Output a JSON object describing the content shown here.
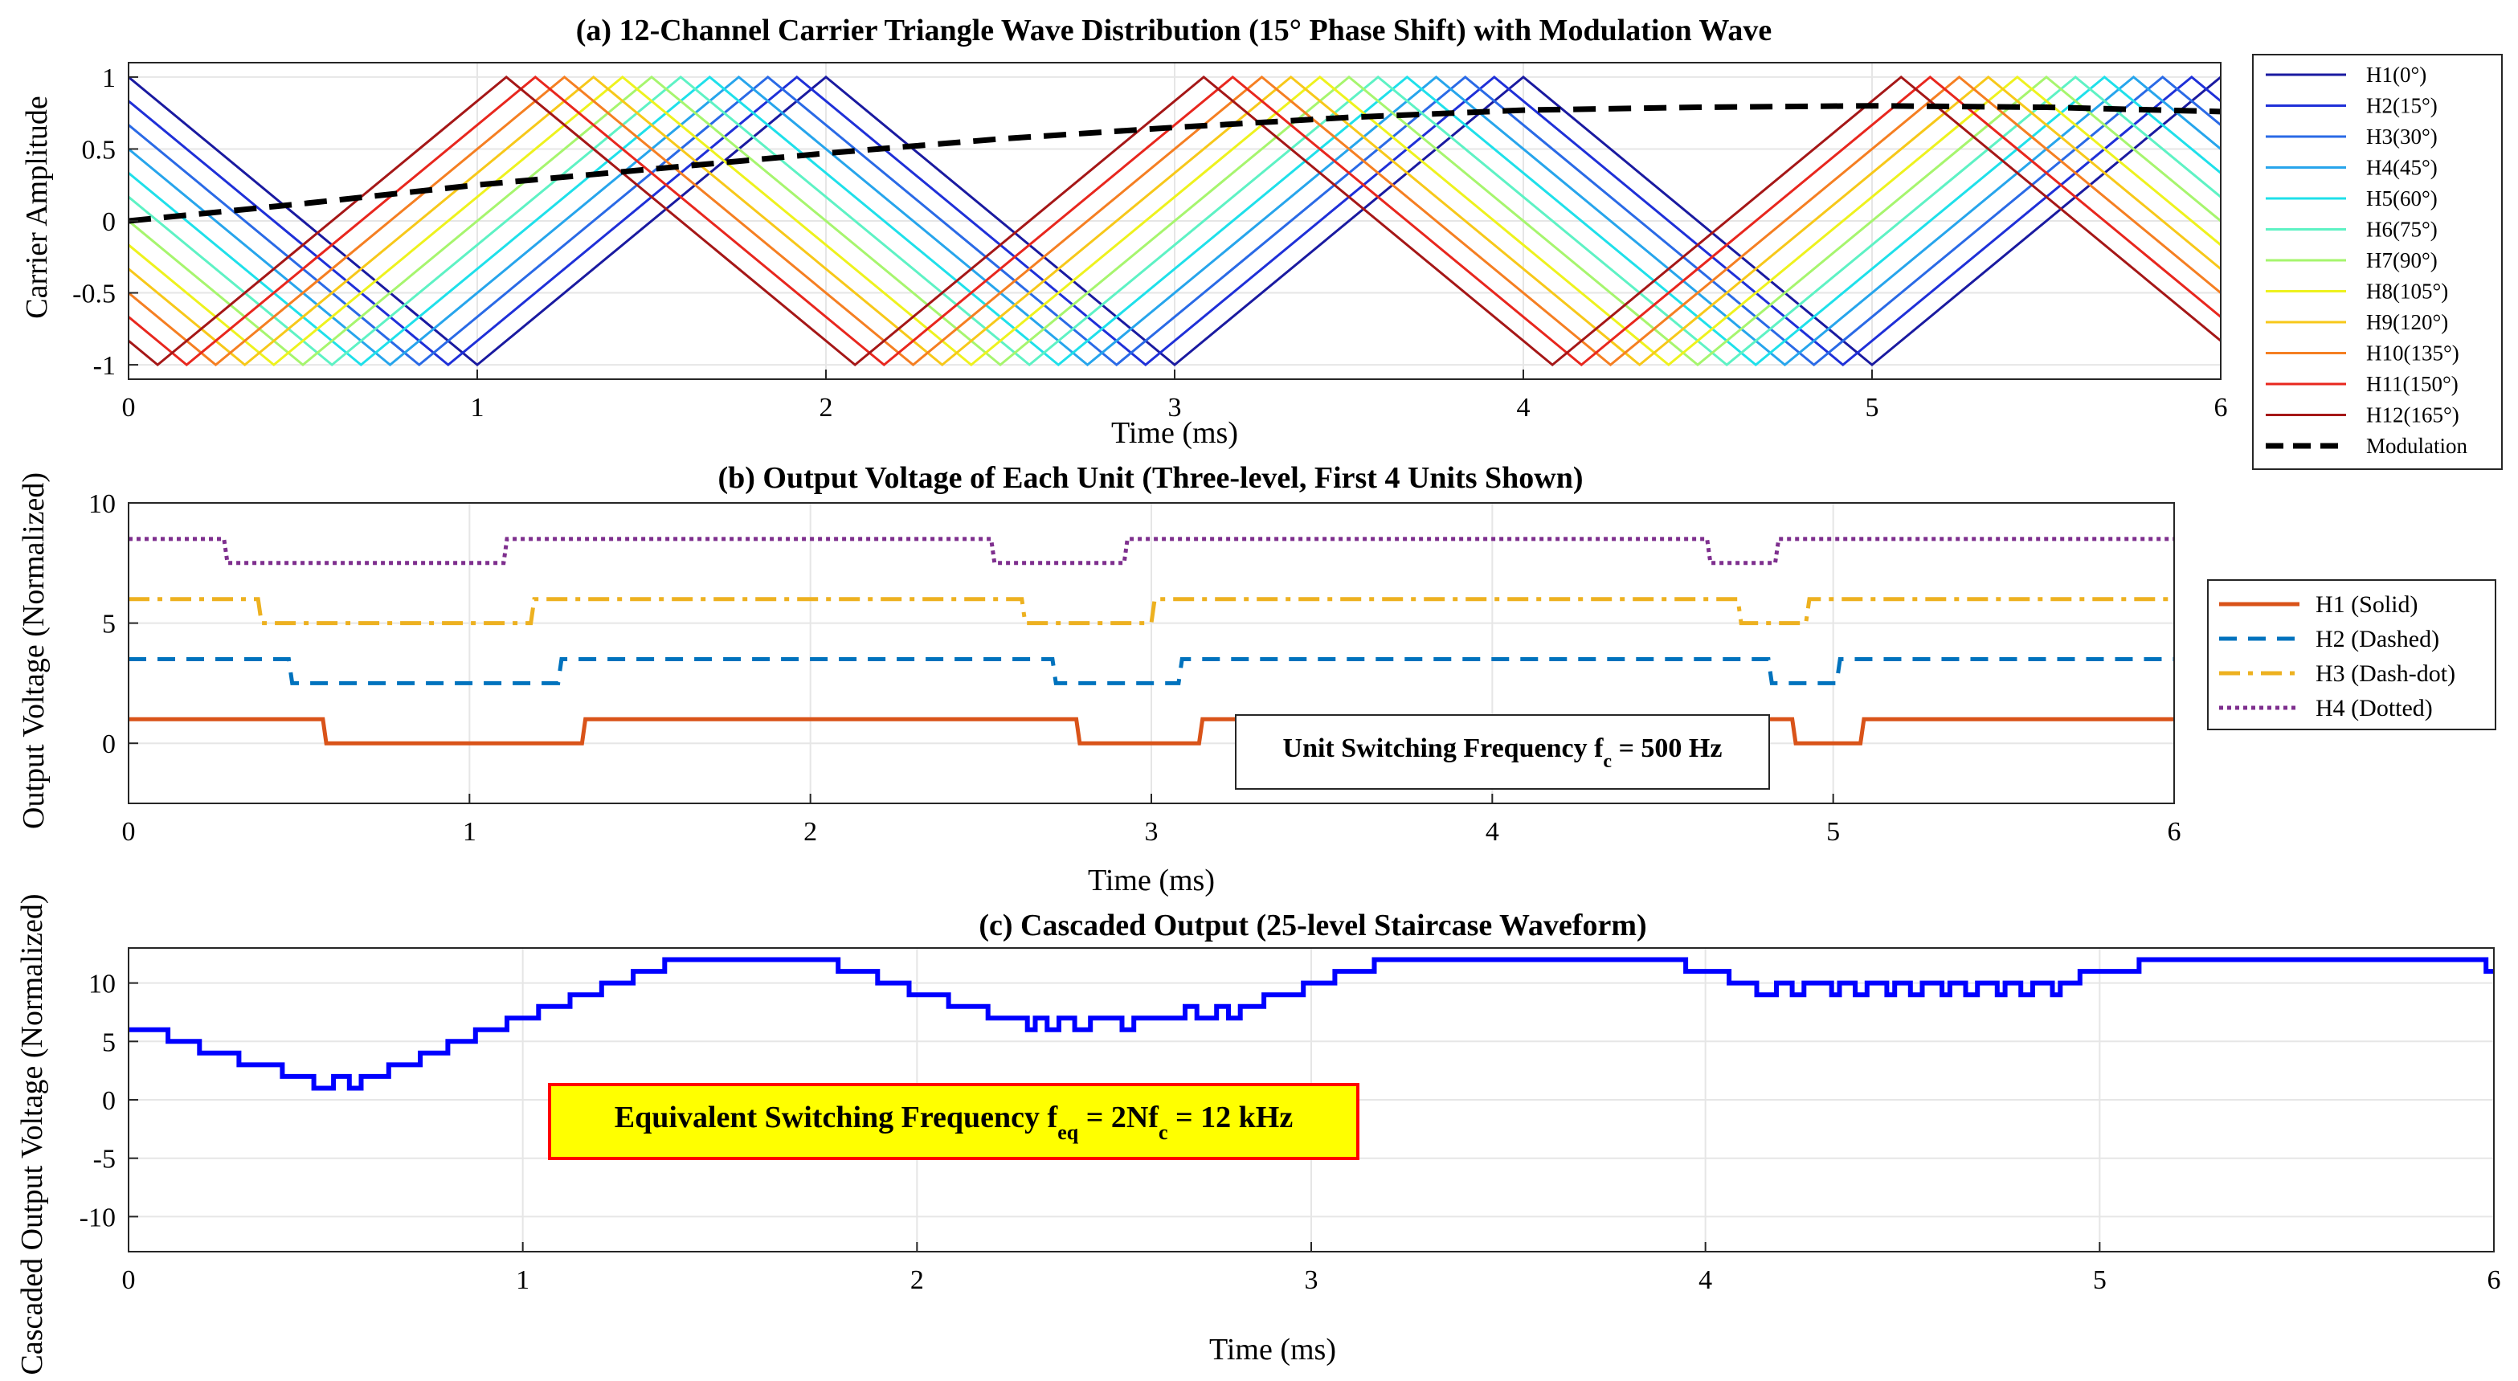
{
  "chart_data": [
    {
      "type": "line",
      "title": "(a) 12-Channel Carrier Triangle Wave Distribution (15° Phase Shift) with Modulation Wave",
      "xlabel": "Time (ms)",
      "ylabel": "Carrier Amplitude",
      "xlim": [
        0,
        6
      ],
      "ylim": [
        -1.1,
        1.1
      ],
      "xticks": [
        "0",
        "1",
        "2",
        "3",
        "4",
        "5",
        "6"
      ],
      "yticks": [
        "-1",
        "-0.5",
        "0",
        "0.5",
        "1"
      ],
      "grid": true,
      "legend_position": "outside-right",
      "carrier_period_ms": 2,
      "carrier_phase_step_deg": 15,
      "series": [
        {
          "name": "H1(0°)",
          "color": "#1a1aa0",
          "phase_deg": 0
        },
        {
          "name": "H2(15°)",
          "color": "#1f30d8",
          "phase_deg": 15
        },
        {
          "name": "H3(30°)",
          "color": "#2a6ae6",
          "phase_deg": 30
        },
        {
          "name": "H4(45°)",
          "color": "#27a5ec",
          "phase_deg": 45
        },
        {
          "name": "H5(60°)",
          "color": "#1fe0ea",
          "phase_deg": 60
        },
        {
          "name": "H6(75°)",
          "color": "#5ef2c4",
          "phase_deg": 75
        },
        {
          "name": "H7(90°)",
          "color": "#a6f56e",
          "phase_deg": 90
        },
        {
          "name": "H8(105°)",
          "color": "#eef21e",
          "phase_deg": 105
        },
        {
          "name": "H9(120°)",
          "color": "#f7c81a",
          "phase_deg": 120
        },
        {
          "name": "H10(135°)",
          "color": "#f57f22",
          "phase_deg": 135
        },
        {
          "name": "H11(150°)",
          "color": "#e8271e",
          "phase_deg": 150
        },
        {
          "name": "H12(165°)",
          "color": "#a51717",
          "phase_deg": 165
        },
        {
          "name": "Modulation",
          "color": "#000000",
          "style": "dashed",
          "x": [
            0,
            0.5,
            1,
            1.5,
            2,
            2.5,
            3,
            3.5,
            4,
            4.5,
            5,
            5.5,
            6
          ],
          "y": [
            0,
            0.12,
            0.25,
            0.36,
            0.47,
            0.57,
            0.65,
            0.72,
            0.77,
            0.79,
            0.8,
            0.79,
            0.76
          ]
        }
      ]
    },
    {
      "type": "line",
      "title": "(b) Output Voltage of Each Unit (Three-level, First 4 Units Shown)",
      "xlabel": "Time (ms)",
      "ylabel": "Output Voltage (Normalized)",
      "xlim": [
        0,
        6
      ],
      "ylim": [
        -2.5,
        10
      ],
      "xticks": [
        "0",
        "1",
        "2",
        "3",
        "4",
        "5",
        "6"
      ],
      "yticks": [
        "0",
        "5",
        "10"
      ],
      "grid": true,
      "legend_position": "outside-right",
      "annotation": {
        "text": "Unit Switching Frequency f",
        "sub": "c",
        "suffix": " = 500 Hz"
      },
      "series": [
        {
          "name": "H1 (Solid)",
          "color": "#d95319",
          "style": "solid",
          "offset": 0,
          "x": [
            0,
            0.57,
            0.58,
            1.33,
            1.34,
            2.78,
            2.79,
            3.14,
            3.15,
            4.88,
            4.89,
            5.08,
            5.09,
            6
          ],
          "y": [
            1,
            1,
            0,
            0,
            1,
            1,
            0,
            0,
            1,
            1,
            0,
            0,
            1,
            1
          ]
        },
        {
          "name": "H2 (Dashed)",
          "color": "#0072bd",
          "style": "dashed",
          "offset": 2.5,
          "x": [
            0,
            0.47,
            0.48,
            1.26,
            1.27,
            2.71,
            2.72,
            3.08,
            3.09,
            4.81,
            4.82,
            5.01,
            5.02,
            6
          ],
          "y": [
            1,
            1,
            0,
            0,
            1,
            1,
            0,
            0,
            1,
            1,
            0,
            0,
            1,
            1
          ]
        },
        {
          "name": "H3 (Dash-dot)",
          "color": "#edb120",
          "style": "dashdot",
          "offset": 5,
          "x": [
            0,
            0.38,
            0.39,
            1.18,
            1.19,
            2.62,
            2.63,
            3.0,
            3.01,
            4.72,
            4.73,
            4.92,
            4.93,
            6
          ],
          "y": [
            1,
            1,
            0,
            0,
            1,
            1,
            0,
            0,
            1,
            1,
            0,
            0,
            1,
            1
          ]
        },
        {
          "name": "H4 (Dotted)",
          "color": "#7e2f8e",
          "style": "dotted",
          "offset": 7.5,
          "x": [
            0,
            0.28,
            0.29,
            1.1,
            1.11,
            2.53,
            2.54,
            2.92,
            2.93,
            4.63,
            4.64,
            4.83,
            4.84,
            6
          ],
          "y": [
            1,
            1,
            0,
            0,
            1,
            1,
            0,
            0,
            1,
            1,
            0,
            0,
            1,
            1
          ]
        }
      ]
    },
    {
      "type": "line",
      "title": "(c) Cascaded Output (25-level Staircase Waveform)",
      "xlabel": "Time (ms)",
      "ylabel": "Cascaded Output Voltage (Normalized)",
      "xlim": [
        0,
        6
      ],
      "ylim": [
        -13,
        13
      ],
      "xticks": [
        "0",
        "1",
        "2",
        "3",
        "4",
        "5",
        "6"
      ],
      "yticks": [
        "-10",
        "-5",
        "0",
        "5",
        "10"
      ],
      "grid": true,
      "annotation": {
        "text": "Equivalent Switching Frequency f",
        "sub1": "eq",
        "mid": " = 2Nf",
        "sub2": "c",
        "suffix": " = 12 kHz",
        "box_fill": "#ffff00",
        "box_edge": "#ff0000"
      },
      "series": [
        {
          "name": "Cascaded output",
          "color": "#0000ff",
          "style": "stairs",
          "steps": [
            [
              0,
              6
            ],
            [
              0.1,
              5
            ],
            [
              0.18,
              4
            ],
            [
              0.28,
              3
            ],
            [
              0.39,
              2
            ],
            [
              0.47,
              1
            ],
            [
              0.52,
              2
            ],
            [
              0.56,
              1
            ],
            [
              0.59,
              2
            ],
            [
              0.66,
              3
            ],
            [
              0.74,
              4
            ],
            [
              0.81,
              5
            ],
            [
              0.88,
              6
            ],
            [
              0.96,
              7
            ],
            [
              1.04,
              8
            ],
            [
              1.12,
              9
            ],
            [
              1.2,
              10
            ],
            [
              1.28,
              11
            ],
            [
              1.36,
              12
            ],
            [
              1.8,
              11
            ],
            [
              1.9,
              10
            ],
            [
              1.98,
              9
            ],
            [
              2.08,
              8
            ],
            [
              2.18,
              7
            ],
            [
              2.28,
              6
            ],
            [
              2.3,
              7
            ],
            [
              2.33,
              6
            ],
            [
              2.36,
              7
            ],
            [
              2.4,
              6
            ],
            [
              2.44,
              7
            ],
            [
              2.52,
              6
            ],
            [
              2.55,
              7
            ],
            [
              2.68,
              8
            ],
            [
              2.71,
              7
            ],
            [
              2.76,
              8
            ],
            [
              2.79,
              7
            ],
            [
              2.82,
              8
            ],
            [
              2.88,
              9
            ],
            [
              2.98,
              10
            ],
            [
              3.06,
              11
            ],
            [
              3.16,
              12
            ],
            [
              3.95,
              11
            ],
            [
              4.06,
              10
            ],
            [
              4.13,
              9
            ],
            [
              4.18,
              10
            ],
            [
              4.22,
              9
            ],
            [
              4.25,
              10
            ],
            [
              4.32,
              9
            ],
            [
              4.34,
              10
            ],
            [
              4.38,
              9
            ],
            [
              4.41,
              10
            ],
            [
              4.46,
              9
            ],
            [
              4.48,
              10
            ],
            [
              4.52,
              9
            ],
            [
              4.55,
              10
            ],
            [
              4.6,
              9
            ],
            [
              4.62,
              10
            ],
            [
              4.66,
              9
            ],
            [
              4.69,
              10
            ],
            [
              4.74,
              9
            ],
            [
              4.76,
              10
            ],
            [
              4.8,
              9
            ],
            [
              4.83,
              10
            ],
            [
              4.88,
              9
            ],
            [
              4.9,
              10
            ],
            [
              4.95,
              11
            ],
            [
              5.1,
              12
            ],
            [
              5.98,
              11
            ],
            [
              6,
              11
            ]
          ]
        }
      ]
    }
  ]
}
